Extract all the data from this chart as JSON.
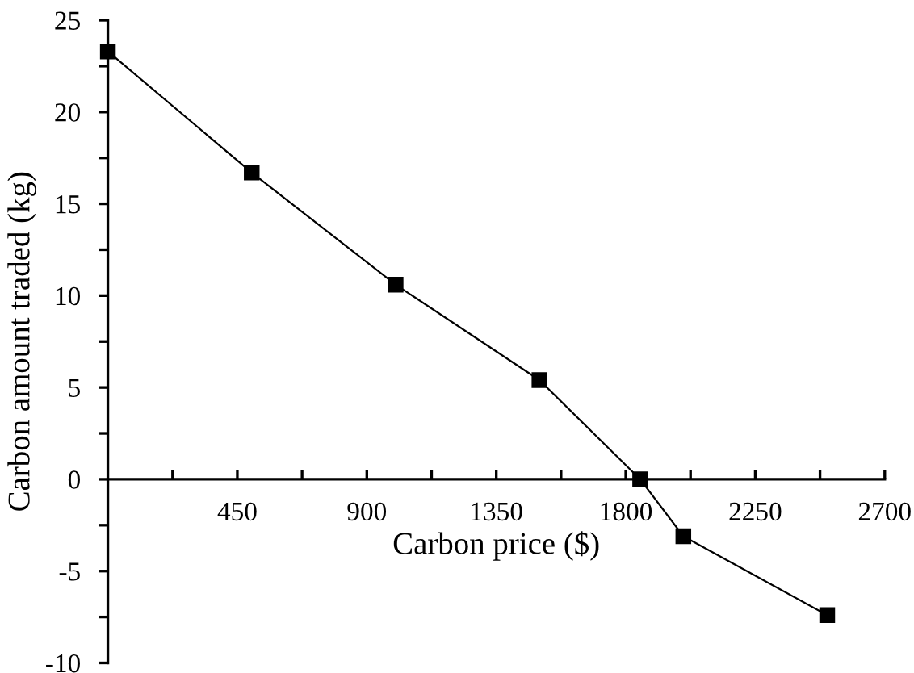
{
  "chart_data": {
    "type": "line",
    "xlabel": "Carbon price ($)",
    "ylabel": "Carbon amount traded (kg)",
    "x": [
      0,
      500,
      1000,
      1500,
      1850,
      2000,
      2500
    ],
    "series": [
      {
        "color": "#000000",
        "values": [
          23.3,
          16.7,
          10.6,
          5.4,
          0,
          -3.1,
          -7.4
        ]
      }
    ],
    "xlim": [
      0,
      2700
    ],
    "ylim": [
      -10,
      25
    ],
    "xticks": [
      {
        "value": 225,
        "label": null
      },
      450,
      {
        "value": 675,
        "label": null
      },
      900,
      {
        "value": 1125,
        "label": null
      },
      1350,
      {
        "value": 1575,
        "label": null
      },
      1800,
      {
        "value": 2025,
        "label": null
      },
      2250,
      {
        "value": 2475,
        "label": null
      },
      2700
    ],
    "yticks": [
      -10,
      {
        "value": -7.5,
        "label": null
      },
      -5,
      {
        "value": -2.5,
        "label": null
      },
      0,
      {
        "value": 2.5,
        "label": null
      },
      5,
      {
        "value": 7.5,
        "label": null
      },
      10,
      {
        "value": 12.5,
        "label": null
      },
      15,
      {
        "value": 17.5,
        "label": null
      },
      20,
      {
        "value": 22.5,
        "label": null
      },
      25
    ],
    "marker": "square",
    "line_style": "solid",
    "grid": false,
    "legend": false
  }
}
